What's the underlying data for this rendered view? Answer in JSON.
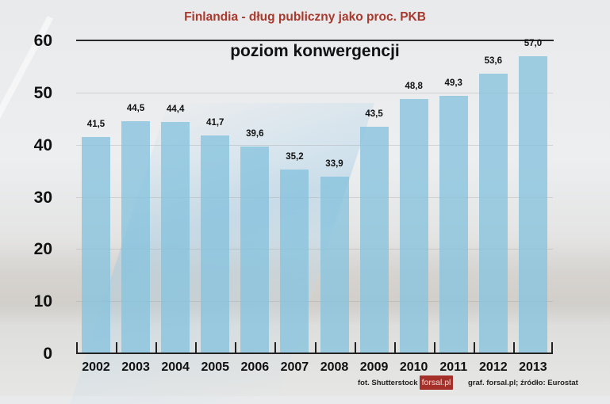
{
  "title": "Finlandia - dług publiczny jako proc. PKB",
  "subtitle": "poziom konwergencji",
  "credits": {
    "photo": "fot. Shutterstock",
    "logo": "forsal.pl",
    "source": "graf. forsal.pl;  źródło: Eurostat"
  },
  "colors": {
    "title": "#a8392c",
    "bar": "#87c3de",
    "logo_bg": "#a5302a"
  },
  "y_axis": {
    "ticks": [
      "0",
      "10",
      "20",
      "30",
      "40",
      "50",
      "60"
    ]
  },
  "chart_data": {
    "type": "bar",
    "title": "Finlandia - dług publiczny jako proc. PKB",
    "subtitle": "poziom konwergencji",
    "xlabel": "",
    "ylabel": "",
    "ylim": [
      0,
      60
    ],
    "yticks": [
      0,
      10,
      20,
      30,
      40,
      50,
      60
    ],
    "grid": true,
    "legend": null,
    "categories": [
      "2002",
      "2003",
      "2004",
      "2005",
      "2006",
      "2007",
      "2008",
      "2009",
      "2010",
      "2011",
      "2012",
      "2013"
    ],
    "values": [
      41.5,
      44.5,
      44.4,
      41.7,
      39.6,
      35.2,
      33.9,
      43.5,
      48.8,
      49.3,
      53.6,
      57.0
    ],
    "value_labels": [
      "41,5",
      "44,5",
      "44,4",
      "41,7",
      "39,6",
      "35,2",
      "33,9",
      "43,5",
      "48,8",
      "49,3",
      "53,6",
      "57,0"
    ],
    "annotations": [
      "fot. Shutterstock",
      "forsal.pl",
      "graf. forsal.pl;  źródło: Eurostat"
    ]
  }
}
